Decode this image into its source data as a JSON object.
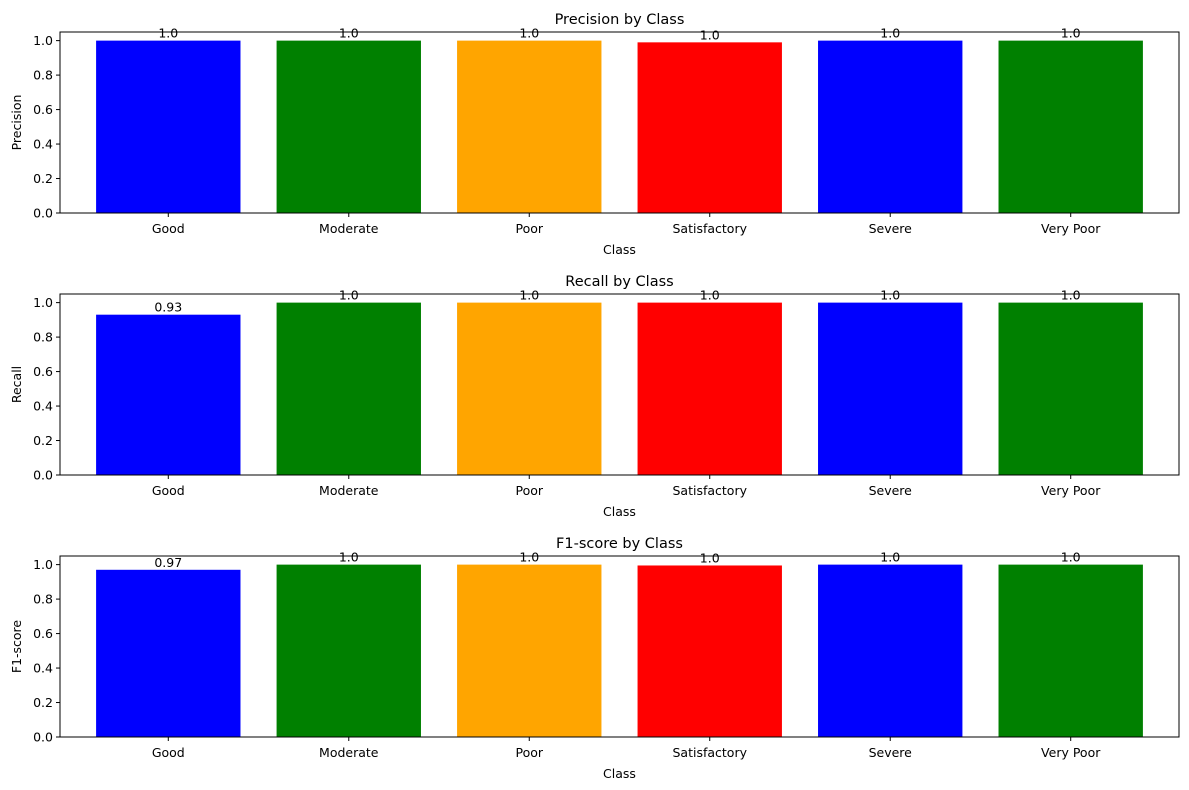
{
  "chart_data": [
    {
      "type": "bar",
      "title": "Precision by Class",
      "xlabel": "Class",
      "ylabel": "Precision",
      "categories": [
        "Good",
        "Moderate",
        "Poor",
        "Satisfactory",
        "Severe",
        "Very Poor"
      ],
      "values": [
        1.0,
        1.0,
        1.0,
        0.99,
        1.0,
        1.0
      ],
      "value_labels": [
        "1.0",
        "1.0",
        "1.0",
        "1.0",
        "1.0",
        "1.0"
      ],
      "colors": [
        "#0000ff",
        "#008000",
        "#ffa500",
        "#ff0000",
        "#0000ff",
        "#008000"
      ],
      "ylim": [
        0,
        1.05
      ],
      "yticks": [
        0.0,
        0.2,
        0.4,
        0.6,
        0.8,
        1.0
      ],
      "ytick_labels": [
        "0.0",
        "0.2",
        "0.4",
        "0.6",
        "0.8",
        "1.0"
      ],
      "grid": false
    },
    {
      "type": "bar",
      "title": "Recall by Class",
      "xlabel": "Class",
      "ylabel": "Recall",
      "categories": [
        "Good",
        "Moderate",
        "Poor",
        "Satisfactory",
        "Severe",
        "Very Poor"
      ],
      "values": [
        0.93,
        1.0,
        1.0,
        1.0,
        1.0,
        1.0
      ],
      "value_labels": [
        "0.93",
        "1.0",
        "1.0",
        "1.0",
        "1.0",
        "1.0"
      ],
      "colors": [
        "#0000ff",
        "#008000",
        "#ffa500",
        "#ff0000",
        "#0000ff",
        "#008000"
      ],
      "ylim": [
        0,
        1.05
      ],
      "yticks": [
        0.0,
        0.2,
        0.4,
        0.6,
        0.8,
        1.0
      ],
      "ytick_labels": [
        "0.0",
        "0.2",
        "0.4",
        "0.6",
        "0.8",
        "1.0"
      ],
      "grid": false
    },
    {
      "type": "bar",
      "title": "F1-score by Class",
      "xlabel": "Class",
      "ylabel": "F1-score",
      "categories": [
        "Good",
        "Moderate",
        "Poor",
        "Satisfactory",
        "Severe",
        "Very Poor"
      ],
      "values": [
        0.97,
        1.0,
        1.0,
        0.995,
        1.0,
        1.0
      ],
      "value_labels": [
        "0.97",
        "1.0",
        "1.0",
        "1.0",
        "1.0",
        "1.0"
      ],
      "colors": [
        "#0000ff",
        "#008000",
        "#ffa500",
        "#ff0000",
        "#0000ff",
        "#008000"
      ],
      "ylim": [
        0,
        1.05
      ],
      "yticks": [
        0.0,
        0.2,
        0.4,
        0.6,
        0.8,
        1.0
      ],
      "ytick_labels": [
        "0.0",
        "0.2",
        "0.4",
        "0.6",
        "0.8",
        "1.0"
      ],
      "grid": false
    }
  ]
}
